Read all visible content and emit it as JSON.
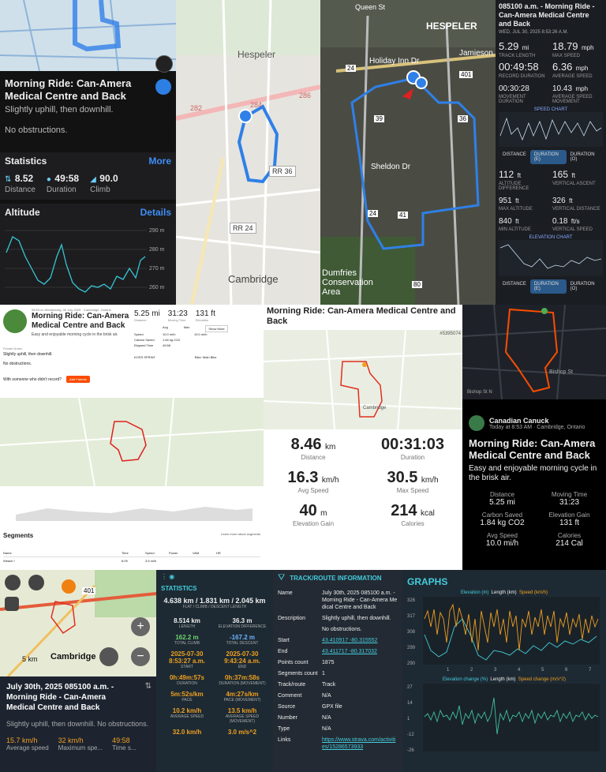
{
  "p1": {
    "title": "Morning Ride: Can-Amera Medical Centre and Back",
    "sub": "Slightly uphill, then downhill.",
    "note": "No obstructions.",
    "stats_h": "Statistics",
    "more": "More",
    "dist_v": "8.52",
    "dist_l": "Distance",
    "dur_v": "49:58",
    "dur_l": "Duration",
    "climb_v": "90.0",
    "climb_l": "Climb",
    "alt_h": "Altitude",
    "details": "Details",
    "yticks": [
      "290 m",
      "280 m",
      "270 m",
      "260 m"
    ]
  },
  "p2": {
    "labels": [
      "Hespeler",
      "RR 36",
      "RR 24",
      "Cambridge",
      "282",
      "284",
      "286"
    ]
  },
  "p3": {
    "labels": [
      "HESPELER",
      "Holiday Inn Dr",
      "Jamieson",
      "Sheldon Dr",
      "Dumfries Conservation Area",
      "Queen St",
      "24",
      "39",
      "36",
      "401",
      "41",
      "24",
      "80"
    ]
  },
  "p4": {
    "title": "085100 a.m. - Morning Ride - Can-Amera Medical Centre and Back",
    "date": "WED, JUL 30, 2025 8:53:26 A.M.",
    "track_v": "5.29",
    "track_u": "mi",
    "track_l": "TRACK LENGTH",
    "max_v": "18.79",
    "max_u": "mph",
    "max_l": "MAX SPEED",
    "rec_v": "00:49:58",
    "rec_l": "RECORD DURATION",
    "avg_v": "6.36",
    "avg_u": "mph",
    "avg_l": "AVERAGE SPEED",
    "mov_v": "00:30:28",
    "mov_l": "MOVEMENT DURATION",
    "avgm_v": "10.43",
    "avgm_u": "mph",
    "avgm_l": "AVERAGE SPEED MOVEMENT",
    "speed_chart": "SPEED CHART",
    "tabs": [
      "DISTANCE",
      "DURATION (E)",
      "DURATION (O)"
    ],
    "altdiff_v": "112",
    "altdiff_u": "ft",
    "altdiff_l": "ALTITUDE DIFFERENCE",
    "vasc_v": "165",
    "vasc_u": "ft",
    "vasc_l": "VERTICAL ASCENT",
    "maxalt_v": "951",
    "maxalt_u": "ft",
    "maxalt_l": "MAX ALTITUDE",
    "vdist_v": "326",
    "vdist_u": "ft",
    "vdist_l": "VERTICAL DISTANCE",
    "minalt_v": "840",
    "minalt_u": "ft",
    "minalt_l": "MIN ALTITUDE",
    "vspd_v": "0.18",
    "vspd_u": "ft/s",
    "vspd_l": "VERTICAL SPEED",
    "elev_chart": "ELEVATION CHART"
  },
  "p5": {
    "meta": "08:53 on Wednesday, 30 July 2025 · Cambridge, Ontario",
    "title": "Morning Ride: Can-Amera Medical Centre and Back",
    "desc": "Easy and enjoyable morning cycle in the brisk air.",
    "priv": "Private Notes",
    "pn1": "Slightly uphill, then downhill.",
    "pn2": "No obstructions.",
    "with": "With someone who didn't record?",
    "addf": "Add Friends",
    "s1v": "5.25 mi",
    "s1l": "Distance",
    "s2v": "31:23",
    "s2l": "Moving Time",
    "s3v": "131 ft",
    "s3l": "Elevation",
    "avg": "Avg",
    "max": "Max",
    "showmore": "Show More",
    "r1": "Speed",
    "r1a": "10.0 mi/h",
    "r1m": "19.0 mi/h",
    "r2": "Carbon Saved",
    "r2a": "1.84 kg CO2",
    "r3": "Elapsed Time",
    "r3a": "49:58",
    "bike": "KOSS SPRINT",
    "bikel": "Bike: Main Bike",
    "seg": "Segments",
    "learn": "Learn more about segments",
    "cols": [
      "Name",
      "Time",
      "Speed",
      "Power",
      "VAM",
      "HR"
    ],
    "row1": "Weave I",
    "row1t": "6:09",
    "row1s": "3.5 mi/h"
  },
  "p6": {
    "title": "Morning Ride: Can-Amera Medical Centre and Back",
    "idtag": "#5395074",
    "cambridge": "Cambridge",
    "dist_v": "8.46",
    "dist_u": "km",
    "dist_l": "Distance",
    "dur_v": "00:31:03",
    "dur_l": "Duration",
    "avg_v": "16.3",
    "avg_u": "km/h",
    "avg_l": "Avg Speed",
    "max_v": "30.5",
    "max_u": "km/h",
    "max_l": "Max Speed",
    "elev_v": "40",
    "elev_u": "m",
    "elev_l": "Elevation Gain",
    "cal_v": "214",
    "cal_u": "kcal",
    "cal_l": "Calories"
  },
  "p7": {
    "bishop": "Bishop St",
    "bishopn": "Bishop St N",
    "author": "Canadian Canuck",
    "when": "Today at 8:53 AM · Cambridge, Ontario",
    "title": "Morning Ride: Can-Amera Medical Centre and Back",
    "desc": "Easy and enjoyable morning cycle in the brisk air.",
    "dist_l": "Distance",
    "dist_v": "5.25 mi",
    "mt_l": "Moving Time",
    "mt_v": "31:23",
    "cs_l": "Carbon Saved",
    "cs_v": "1.84 kg CO2",
    "eg_l": "Elevation Gain",
    "eg_v": "131 ft",
    "as_l": "Avg Speed",
    "as_v": "10.0 mi/h",
    "cal_l": "Calories",
    "cal_v": "214 Cal"
  },
  "p8": {
    "scale": "5 km",
    "city": "Cambridge",
    "hw": "401",
    "title": "July 30th, 2025 085100 a.m. - Morning Ride - Can-Amera Medical Centre and Back",
    "desc": "Slightly uphill, then downhill. No obstructions.",
    "s1v": "15.7 km/h",
    "s1l": "Average speed",
    "s2v": "32 km/h",
    "s2l": "Maximum spe...",
    "s3v": "49:58",
    "s3l": "Time s..."
  },
  "p9": {
    "head": "STATISTICS",
    "top_v": "4.638 km / 1.831 km / 2.045 km",
    "top_l": "FLAT / CLIMB / DESCENT LENGTH",
    "cells": [
      {
        "v": "8.514 km",
        "l": "LENGTH",
        "c": "#eeeeee"
      },
      {
        "v": "36.3 m",
        "l": "ELEVATION DIFFERENCE",
        "c": "#eeeeee"
      },
      {
        "v": "162.2 m",
        "l": "TOTAL CLIMB",
        "c": "#6fd46f"
      },
      {
        "v": "-167.2 m",
        "l": "TOTAL DESCENT",
        "c": "#6fb4ff"
      },
      {
        "v": "2025-07-30 8:53:27 a.m.",
        "l": "START",
        "c": "#f0a020"
      },
      {
        "v": "2025-07-30 9:43:24 a.m.",
        "l": "END",
        "c": "#f0a020"
      },
      {
        "v": "0h:49m:57s",
        "l": "DURATION",
        "c": "#f0a020"
      },
      {
        "v": "0h:37m:58s",
        "l": "DURATION (MOVEMENT)",
        "c": "#f0a020"
      },
      {
        "v": "5m:52s/km",
        "l": "PACE",
        "c": "#f0a020"
      },
      {
        "v": "4m:27s/km",
        "l": "PACE (MOVEMENT)",
        "c": "#f0a020"
      },
      {
        "v": "10.2 km/h",
        "l": "AVERAGE SPEED",
        "c": "#f0a020"
      },
      {
        "v": "13.5 km/h",
        "l": "AVERAGE SPEED (MOVEMENT)",
        "c": "#f0a020"
      },
      {
        "v": "32.0 km/h",
        "l": "",
        "c": "#f0a020"
      },
      {
        "v": "3.0 m/s^2",
        "l": "",
        "c": "#f0a020"
      }
    ]
  },
  "p10": {
    "head": "TRACK/ROUTE INFORMATION",
    "rows": [
      {
        "k": "Name",
        "v": "July 30th, 2025 085100 a.m. - Morning Ride - Can-Amera Medical Centre and Back",
        "link": false
      },
      {
        "k": "Description",
        "v": "Slightly uphill, then downhill.",
        "link": false
      },
      {
        "k": "",
        "v": "No obstructions.",
        "link": false
      },
      {
        "k": "Start",
        "v": "43.410917 -80.315552",
        "link": true
      },
      {
        "k": "End",
        "v": "43.411717 -80.317032",
        "link": true
      },
      {
        "k": "Points count",
        "v": "1875",
        "link": false
      },
      {
        "k": "Segments count",
        "v": "1",
        "link": false
      },
      {
        "k": "Track/route",
        "v": "Track",
        "link": false
      },
      {
        "k": "Comment",
        "v": "N/A",
        "link": false
      },
      {
        "k": "Source",
        "v": "GPX file",
        "link": false
      },
      {
        "k": "Number",
        "v": "N/A",
        "link": false
      },
      {
        "k": "Type",
        "v": "N/A",
        "link": false
      },
      {
        "k": "Links",
        "v": "https://www.strava.com/activities/15286573933",
        "link": true
      }
    ]
  },
  "p11": {
    "head": "GRAPHS",
    "leg1a": "Elevation (m)",
    "leg1b": "Length (km)",
    "leg1c": "Speed (km/h)",
    "y1": [
      "326",
      "317",
      "308",
      "299",
      "290"
    ],
    "leg2a": "Elevation change (%)",
    "leg2b": "Length (km)",
    "leg2c": "Speed change (m/s^2)",
    "y2": [
      "27",
      "14",
      "1",
      "-12",
      "-26"
    ],
    "x": [
      "1",
      "2",
      "3",
      "4",
      "5",
      "6",
      "7"
    ]
  }
}
